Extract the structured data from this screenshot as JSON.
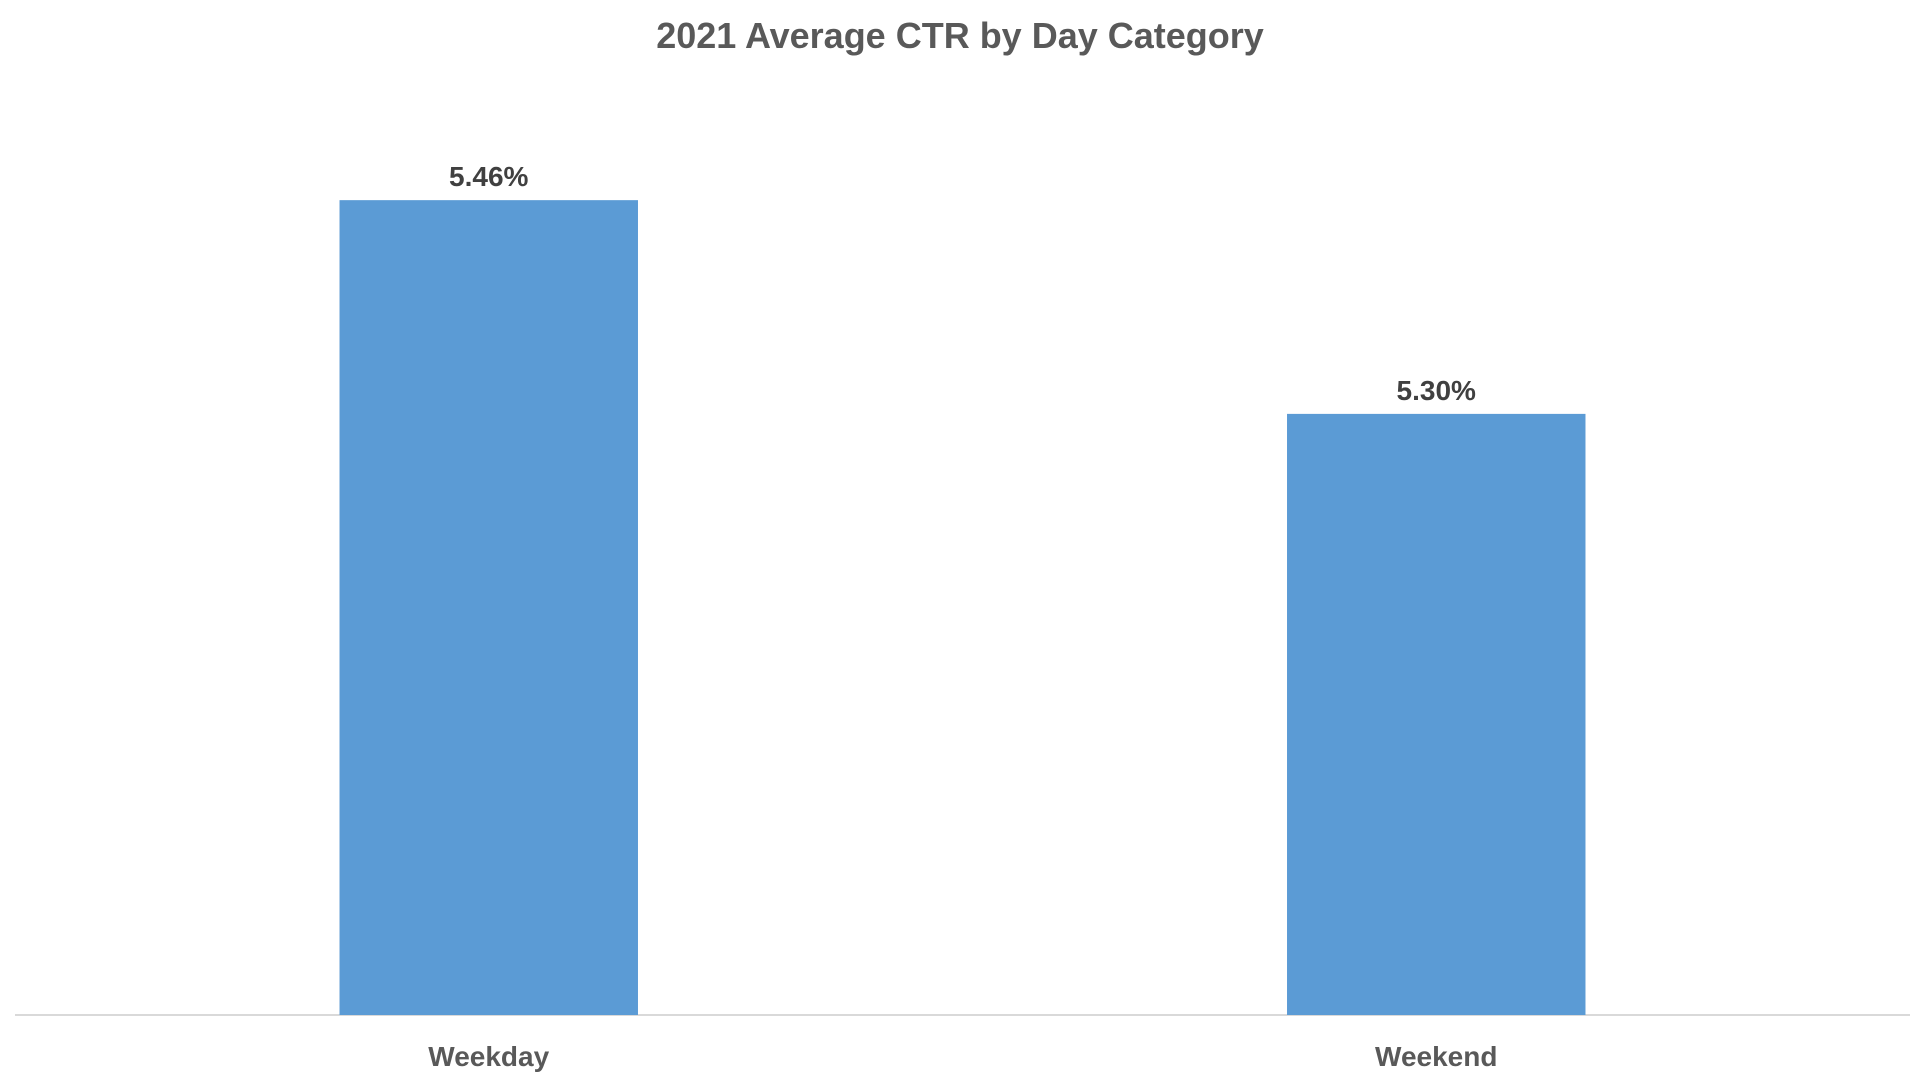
{
  "chart_data": {
    "type": "bar",
    "title": "2021 Average CTR by Day Category",
    "xlabel": "",
    "ylabel": "",
    "categories": [
      "Weekday",
      "Weekend"
    ],
    "values": [
      5.46,
      5.3
    ],
    "data_labels": [
      "5.46%",
      "5.30%"
    ],
    "value_unit": "%",
    "ylim": [
      4.85,
      5.52
    ],
    "grid": false,
    "legend": "none",
    "colors": {
      "bar": "#5B9BD5",
      "axis": "#D9D9D9",
      "title": "#595959",
      "data_label": "#404040",
      "category_label": "#595959"
    }
  }
}
